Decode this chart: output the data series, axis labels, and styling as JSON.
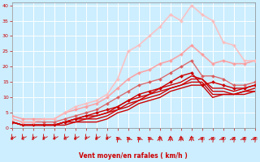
{
  "title": "",
  "xlabel": "Vent moyen/en rafales ( km/h )",
  "background_color": "#cceeff",
  "grid_color": "#ffffff",
  "xlim": [
    0,
    23
  ],
  "ylim": [
    0,
    41
  ],
  "yticks": [
    0,
    5,
    10,
    15,
    20,
    25,
    30,
    35,
    40
  ],
  "xticks": [
    0,
    1,
    2,
    3,
    4,
    5,
    6,
    7,
    8,
    9,
    10,
    11,
    12,
    13,
    14,
    15,
    16,
    17,
    18,
    19,
    20,
    21,
    22,
    23
  ],
  "lines": [
    {
      "x": [
        0,
        1,
        2,
        3,
        4,
        5,
        6,
        7,
        8,
        9,
        10,
        11,
        12,
        13,
        14,
        15,
        16,
        17,
        18,
        19,
        20,
        21,
        22,
        23
      ],
      "y": [
        2,
        1,
        1,
        1,
        1,
        1,
        2,
        2,
        2,
        3,
        5,
        6,
        8,
        9,
        10,
        12,
        13,
        14,
        14,
        10,
        11,
        11,
        11,
        12
      ],
      "color": "#cc0000",
      "lw": 1.0,
      "marker": null,
      "ms": 0,
      "alpha": 1.0,
      "zorder": 3
    },
    {
      "x": [
        0,
        1,
        2,
        3,
        4,
        5,
        6,
        7,
        8,
        9,
        10,
        11,
        12,
        13,
        14,
        15,
        16,
        17,
        18,
        19,
        20,
        21,
        22,
        23
      ],
      "y": [
        2,
        1,
        1,
        1,
        1,
        2,
        2,
        3,
        3,
        4,
        6,
        7,
        9,
        10,
        11,
        13,
        14,
        15,
        15,
        11,
        11,
        11,
        12,
        12
      ],
      "color": "#cc0000",
      "lw": 1.0,
      "marker": null,
      "ms": 0,
      "alpha": 1.0,
      "zorder": 3
    },
    {
      "x": [
        0,
        1,
        2,
        3,
        4,
        5,
        6,
        7,
        8,
        9,
        10,
        11,
        12,
        13,
        14,
        15,
        16,
        17,
        18,
        19,
        20,
        21,
        22,
        23
      ],
      "y": [
        2,
        1,
        1,
        1,
        1,
        2,
        3,
        3,
        4,
        5,
        6,
        8,
        9,
        11,
        12,
        13,
        14,
        16,
        16,
        12,
        12,
        11,
        12,
        13
      ],
      "color": "#cc0000",
      "lw": 1.0,
      "marker": null,
      "ms": 0,
      "alpha": 1.0,
      "zorder": 3
    },
    {
      "x": [
        0,
        1,
        2,
        3,
        4,
        5,
        6,
        7,
        8,
        9,
        10,
        11,
        12,
        13,
        14,
        15,
        16,
        17,
        18,
        19,
        20,
        21,
        22,
        23
      ],
      "y": [
        2,
        1,
        1,
        1,
        1,
        2,
        3,
        4,
        4,
        5,
        7,
        9,
        10,
        11,
        13,
        14,
        15,
        17,
        16,
        13,
        13,
        12,
        13,
        14
      ],
      "color": "#cc0000",
      "lw": 1.0,
      "marker": null,
      "ms": 0,
      "alpha": 1.0,
      "zorder": 3
    },
    {
      "x": [
        0,
        1,
        2,
        3,
        4,
        5,
        6,
        7,
        8,
        9,
        10,
        11,
        12,
        13,
        14,
        15,
        16,
        17,
        18,
        19,
        20,
        21,
        22,
        23
      ],
      "y": [
        2,
        1,
        1,
        1,
        1,
        2,
        3,
        4,
        5,
        6,
        7,
        9,
        11,
        12,
        13,
        15,
        17,
        18,
        14,
        15,
        14,
        13,
        13,
        14
      ],
      "color": "#cc0000",
      "lw": 1.0,
      "marker": "D",
      "ms": 2.0,
      "alpha": 1.0,
      "zorder": 4
    },
    {
      "x": [
        0,
        1,
        2,
        3,
        4,
        5,
        6,
        7,
        8,
        9,
        10,
        11,
        12,
        13,
        14,
        15,
        16,
        17,
        18,
        19,
        20,
        21,
        22,
        23
      ],
      "y": [
        3,
        2,
        2,
        2,
        2,
        3,
        4,
        5,
        6,
        8,
        10,
        12,
        14,
        15,
        16,
        18,
        20,
        22,
        17,
        17,
        16,
        14,
        14,
        15
      ],
      "color": "#dd5555",
      "lw": 1.0,
      "marker": "D",
      "ms": 2.0,
      "alpha": 0.85,
      "zorder": 4
    },
    {
      "x": [
        0,
        1,
        2,
        3,
        4,
        5,
        6,
        7,
        8,
        9,
        10,
        11,
        12,
        13,
        14,
        15,
        16,
        17,
        18,
        19,
        20,
        21,
        22,
        23
      ],
      "y": [
        4,
        3,
        3,
        3,
        3,
        5,
        6,
        7,
        8,
        10,
        13,
        16,
        18,
        19,
        21,
        22,
        24,
        27,
        24,
        21,
        22,
        21,
        21,
        22
      ],
      "color": "#ff9999",
      "lw": 1.2,
      "marker": "D",
      "ms": 2.0,
      "alpha": 0.85,
      "zorder": 4
    },
    {
      "x": [
        0,
        1,
        2,
        3,
        4,
        5,
        6,
        7,
        8,
        9,
        10,
        11,
        12,
        13,
        14,
        15,
        16,
        17,
        18,
        19,
        20,
        21,
        22,
        23
      ],
      "y": [
        3,
        2,
        2,
        3,
        3,
        5,
        7,
        8,
        9,
        11,
        16,
        25,
        27,
        30,
        33,
        37,
        35,
        40,
        37,
        35,
        28,
        27,
        22,
        22
      ],
      "color": "#ffbbbb",
      "lw": 1.2,
      "marker": "D",
      "ms": 2.0,
      "alpha": 0.85,
      "zorder": 5
    }
  ],
  "arrow_symbols": [
    "b",
    "b",
    "b",
    "b",
    "b",
    "b",
    "b",
    "b",
    "b",
    "b",
    "k",
    "k",
    "k",
    "k",
    "A",
    "A",
    "A",
    "A",
    "N",
    "N",
    "N",
    "N",
    "N",
    "N"
  ]
}
